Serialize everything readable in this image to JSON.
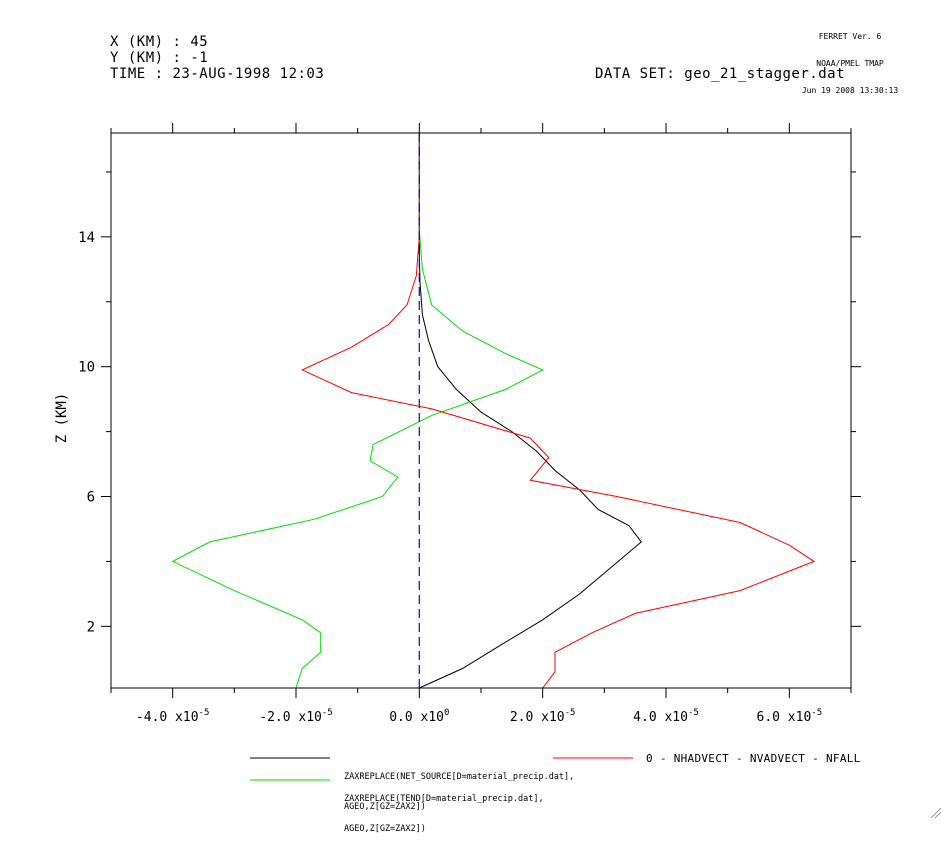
{
  "header": {
    "x_line": "X (KM) : 45",
    "y_line": "Y (KM) : -1",
    "time_line": "TIME : 23-AUG-1998 12:03",
    "dataset": "DATA SET: geo_21_stagger.dat",
    "ferret_version": "FERRET Ver. 6",
    "ferret_org": "NOAA/PMEL TMAP",
    "ferret_date": "Jun 19 2008 13:30:13"
  },
  "legend": {
    "black_line1": "ZAXREPLACE(NET_SOURCE[D=material_precip.dat],",
    "black_line2": "AGEO,Z[GZ=ZAX2])",
    "green_line1": "ZAXREPLACE(TEND[D=material_precip.dat],",
    "green_line2": "AGEO,Z[GZ=ZAX2])",
    "red_label": "0 - NHADVECT - NVADVECT - NFALL"
  },
  "chart_data": {
    "type": "line",
    "ylabel": "Z (KM)",
    "xlim": [
      -5e-05,
      7e-05
    ],
    "ylim": [
      0.1,
      17.2
    ],
    "y_ticks": [
      2,
      6,
      10,
      14
    ],
    "x_ticks": [
      {
        "value": -4e-05,
        "mant": "-4.0",
        "exp": "-5"
      },
      {
        "value": -2e-05,
        "mant": "-2.0",
        "exp": "-5"
      },
      {
        "value": 0,
        "mant": "0.0",
        "exp": "0"
      },
      {
        "value": 2e-05,
        "mant": "2.0",
        "exp": "-5"
      },
      {
        "value": 4e-05,
        "mant": "4.0",
        "exp": "-5"
      },
      {
        "value": 6e-05,
        "mant": "6.0",
        "exp": "-5"
      }
    ],
    "series": [
      {
        "color": "#000000",
        "points": [
          [
            0.0,
            0.1
          ],
          [
            7e-06,
            0.7
          ],
          [
            1.3e-05,
            1.4
          ],
          [
            2e-05,
            2.2
          ],
          [
            2.6e-05,
            3.0
          ],
          [
            3.1e-05,
            3.8
          ],
          [
            3.6e-05,
            4.6
          ],
          [
            3.4e-05,
            5.1
          ],
          [
            2.9e-05,
            5.6
          ],
          [
            2.6e-05,
            6.2
          ],
          [
            2.2e-05,
            6.8
          ],
          [
            1.9e-05,
            7.4
          ],
          [
            1.5e-05,
            8.0
          ],
          [
            1e-05,
            8.6
          ],
          [
            6e-06,
            9.3
          ],
          [
            3e-06,
            10.0
          ],
          [
            1.5e-06,
            10.8
          ],
          [
            5e-07,
            11.6
          ],
          [
            1e-07,
            12.6
          ],
          [
            0.0,
            13.5
          ],
          [
            0.0,
            17.2
          ]
        ]
      },
      {
        "color": "#00dd00",
        "points": [
          [
            -2e-05,
            0.1
          ],
          [
            -1.9e-05,
            0.7
          ],
          [
            -1.6e-05,
            1.2
          ],
          [
            -1.6e-05,
            1.8
          ],
          [
            -1.9e-05,
            2.2
          ],
          [
            -3e-05,
            3.1
          ],
          [
            -4e-05,
            4.0
          ],
          [
            -3.4e-05,
            4.6
          ],
          [
            -1.7e-05,
            5.3
          ],
          [
            -6e-06,
            6.0
          ],
          [
            -3.5e-06,
            6.6
          ],
          [
            -8e-06,
            7.1
          ],
          [
            -7.5e-06,
            7.6
          ],
          [
            2e-06,
            8.5
          ],
          [
            1.4e-05,
            9.3
          ],
          [
            2e-05,
            9.9
          ],
          [
            1.4e-05,
            10.4
          ],
          [
            7e-06,
            11.1
          ],
          [
            2e-06,
            11.9
          ],
          [
            5e-07,
            13.0
          ],
          [
            0.0,
            14.2
          ],
          [
            0.0,
            17.2
          ]
        ]
      },
      {
        "color": "#ff0000",
        "points": [
          [
            2e-05,
            0.1
          ],
          [
            2.2e-05,
            0.6
          ],
          [
            2.2e-05,
            1.2
          ],
          [
            2.8e-05,
            1.8
          ],
          [
            3.5e-05,
            2.4
          ],
          [
            5.2e-05,
            3.1
          ],
          [
            6.4e-05,
            4.0
          ],
          [
            6e-05,
            4.5
          ],
          [
            5.2e-05,
            5.2
          ],
          [
            3.2e-05,
            6.0
          ],
          [
            1.8e-05,
            6.5
          ],
          [
            2.1e-05,
            7.2
          ],
          [
            1.8e-05,
            7.8
          ],
          [
            2e-06,
            8.7
          ],
          [
            -1.1e-05,
            9.2
          ],
          [
            -1.9e-05,
            9.9
          ],
          [
            -1.1e-05,
            10.6
          ],
          [
            -5e-06,
            11.3
          ],
          [
            -2e-06,
            11.9
          ],
          [
            -5e-07,
            12.8
          ],
          [
            0.0,
            14.0
          ],
          [
            0.0,
            17.2
          ]
        ]
      },
      {
        "color": "#0000ff",
        "dashed": true,
        "points": [
          [
            0.0,
            0.1
          ],
          [
            0.0,
            17.2
          ]
        ]
      }
    ]
  }
}
